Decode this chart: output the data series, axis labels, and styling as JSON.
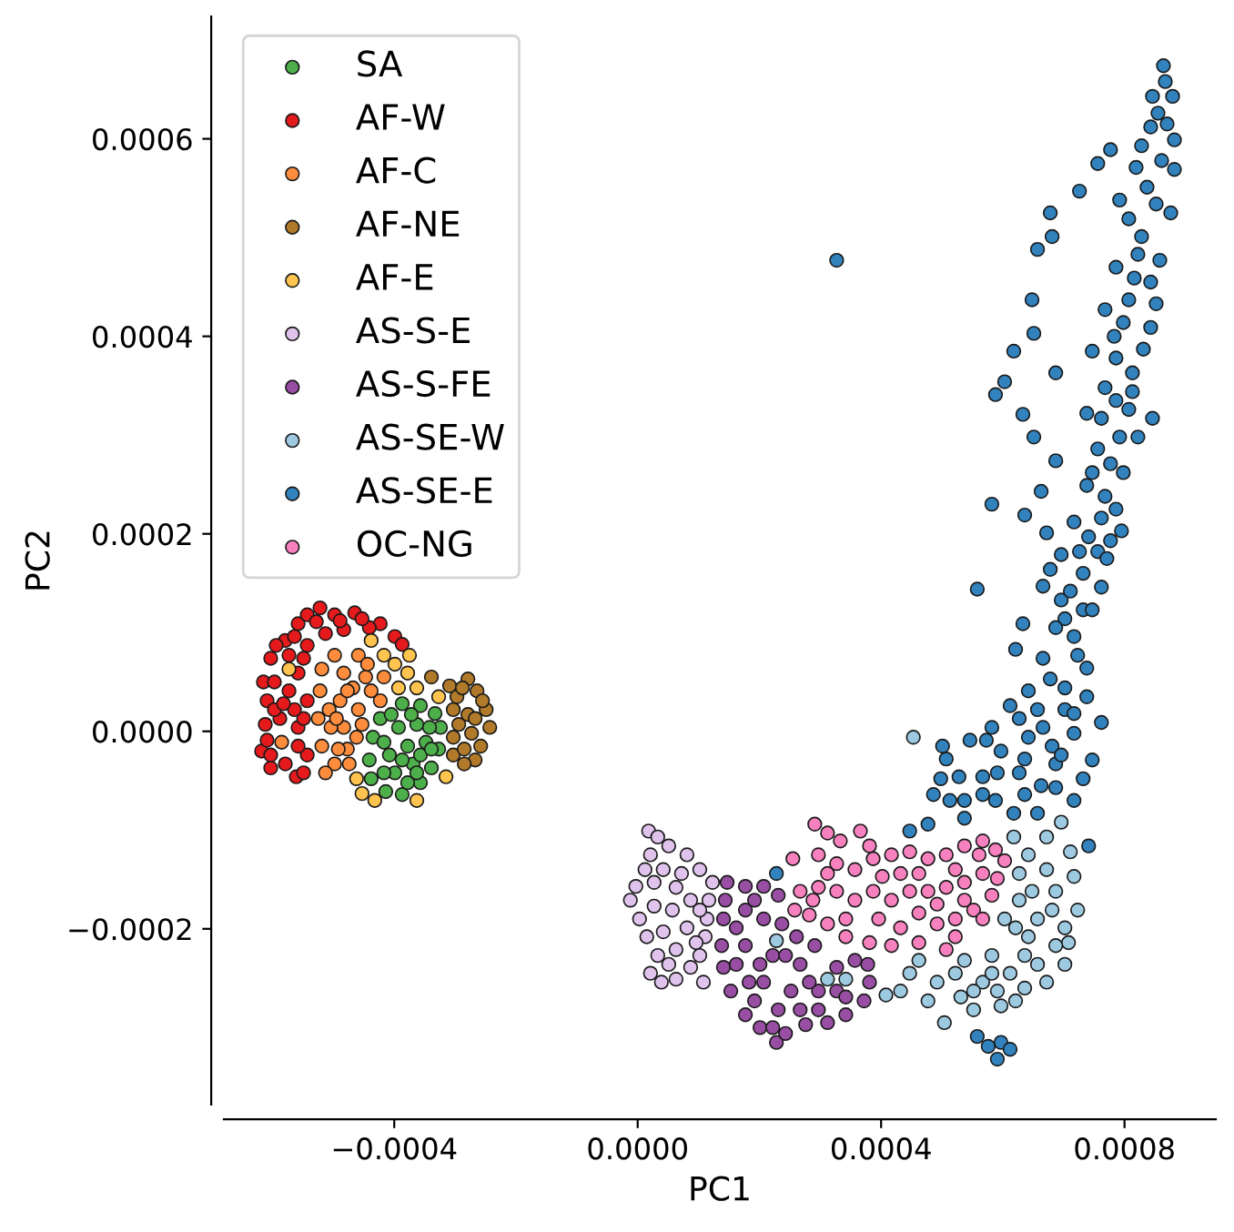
{
  "chart_data": {
    "type": "scatter",
    "xlabel": "PC1",
    "ylabel": "PC2",
    "legend": "top left",
    "marker": "circle",
    "xlim": [
      -0.00068,
      0.00095
    ],
    "ylim": [
      -0.000378,
      0.000724
    ],
    "xticks": [
      {
        "value": -0.0004,
        "label": "−0.0004"
      },
      {
        "value": 0.0,
        "label": "0.0000"
      },
      {
        "value": 0.0004,
        "label": "0.0004"
      },
      {
        "value": 0.0008,
        "label": "0.0008"
      }
    ],
    "yticks": [
      {
        "value": -0.0002,
        "label": "−0.0002"
      },
      {
        "value": 0.0,
        "label": "0.0000"
      },
      {
        "value": 0.0002,
        "label": "0.0002"
      },
      {
        "value": 0.0004,
        "label": "0.0004"
      },
      {
        "value": 0.0006,
        "label": "0.0006"
      }
    ],
    "series": [
      {
        "name": "SA",
        "color": "#4daf4a",
        "x": [
          -0.000387,
          -0.000357,
          -0.000333,
          -0.000324,
          -0.000327,
          -0.000339,
          -0.000357,
          -0.000387,
          -0.000414,
          -0.000438,
          -0.000441,
          -0.000435,
          -0.000423,
          -0.000393,
          -0.000363,
          -0.000378,
          -0.000348,
          -0.000408,
          -0.000369,
          -0.000399,
          -0.000378,
          -0.000357,
          -0.000417,
          -0.000405,
          -0.000372,
          -0.000342,
          -0.000387,
          -0.000417,
          -0.000339,
          -0.000363
        ],
        "values": [
          2.8e-05,
          2.6e-05,
          1.8e-05,
          4e-06,
          -1.8e-05,
          -3.7e-05,
          -5.2e-05,
          -6.4e-05,
          -6.1e-05,
          -4.8e-05,
          -2.9e-05,
          -6e-06,
          1.3e-05,
          4e-06,
          7e-06,
          -1.5e-05,
          -1.1e-05,
          -2.4e-05,
          -3.3e-05,
          -4.2e-05,
          -5.2e-05,
          -2.4e-05,
          -1.1e-05,
          1.7e-05,
          1.7e-05,
          4e-06,
          -2.9e-05,
          -4.2e-05,
          -1.8e-05,
          -4.2e-05
        ]
      },
      {
        "name": "AF-W",
        "color": "#e41a1c",
        "x": [
          -0.000522,
          -0.000465,
          -0.000423,
          -0.000399,
          -0.000387,
          -0.000561,
          -0.000603,
          -0.000618,
          -0.000612,
          -0.000609,
          -0.000615,
          -0.000603,
          -0.000579,
          -0.000558,
          -0.000543,
          -0.000498,
          -0.000441,
          -0.000573,
          -0.000543,
          -0.000513,
          -0.000483,
          -0.000558,
          -0.000573,
          -0.000543,
          -0.000588,
          -0.000558,
          -0.000543,
          -0.000549,
          -0.000549,
          -0.000597,
          -0.000528,
          -0.000609,
          -0.000594,
          -0.000564,
          -0.000489,
          -0.000453,
          -0.000597,
          -0.000564,
          -0.000603,
          -0.000579,
          -0.000558,
          -0.000549,
          -0.000582
        ],
        "values": [
          0.000125,
          0.00012,
          0.000109,
          9.6e-05,
          8.8e-05,
          -4.6e-05,
          -3.7e-05,
          -2e-05,
          7e-06,
          3.1e-05,
          5e-05,
          7.4e-05,
          9.2e-05,
          0.000109,
          0.000118,
          0.000118,
          0.000105,
          7.7e-05,
          8.7e-05,
          9.9e-05,
          0.000103,
          5.9e-05,
          4.1e-05,
          3.1e-05,
          1.3e-05,
          4e-06,
          -2.4e-05,
          1.3e-05,
          -4.2e-05,
          2.2e-05,
          0.000111,
          -9e-06,
          8.7e-05,
          9.6e-05,
          0.000112,
          0.000114,
          5e-05,
          2.2e-05,
          -2.4e-05,
          -3.3e-05,
          -1.5e-05,
          7.4e-05,
          2.8e-05
        ]
      },
      {
        "name": "AF-C",
        "color": "#fd8d3c",
        "x": [
          -0.000498,
          -0.000459,
          -0.000519,
          -0.000483,
          -0.000447,
          -0.000417,
          -0.000423,
          -0.000522,
          -0.000489,
          -0.000459,
          -0.000525,
          -0.000483,
          -0.000462,
          -0.000519,
          -0.000477,
          -0.000498,
          -0.000474,
          -0.000438,
          -0.000468,
          -0.000585,
          -0.000507,
          -0.000453,
          -0.000504,
          -0.000492,
          -0.000513,
          -0.000444,
          -0.000477,
          -0.000495
        ],
        "values": [
          7.7e-05,
          7.7e-05,
          6.3e-05,
          5.9e-05,
          5.5e-05,
          5.5e-05,
          3.1e-05,
          4.1e-05,
          3.1e-05,
          2.2e-05,
          1.3e-05,
          4e-06,
          -6e-06,
          -1.5e-05,
          -1.8e-05,
          -3.3e-05,
          -3.3e-05,
          4.1e-05,
          4.4e-05,
          -1.1e-05,
          2.2e-05,
          7e-06,
          4e-06,
          -1.8e-05,
          -4.2e-05,
          6.8e-05,
          4.1e-05,
          1.3e-05
        ]
      },
      {
        "name": "AF-NE",
        "color": "#b07a2a",
        "x": [
          -0.000339,
          -0.000309,
          -0.000279,
          -0.000264,
          -0.000249,
          -0.000243,
          -0.000258,
          -0.000267,
          -0.000285,
          -0.000303,
          -0.000303,
          -0.000303,
          -0.000297,
          -0.000279,
          -0.000273,
          -0.000267,
          -0.000255,
          -0.000285,
          -0.000288,
          -0.000294
        ],
        "values": [
          5.5e-05,
          4.6e-05,
          5.3e-05,
          4.1e-05,
          2.2e-05,
          4e-06,
          -1.5e-05,
          -2.9e-05,
          -3.3e-05,
          -2.4e-05,
          -6e-06,
          2.2e-05,
          3.5e-05,
          1.7e-05,
          -2e-06,
          1.3e-05,
          3.1e-05,
          -1.8e-05,
          4.4e-05,
          7e-06
        ]
      },
      {
        "name": "AF-E",
        "color": "#fec44f",
        "x": [
          -0.000573,
          -0.000438,
          -0.000417,
          -0.000399,
          -0.000378,
          -0.000363,
          -0.000393,
          -0.000327,
          -0.000462,
          -0.000453,
          -0.000432,
          -0.000363,
          -0.000315,
          -0.000375
        ],
        "values": [
          6.3e-05,
          9.2e-05,
          7.7e-05,
          6.8e-05,
          5.9e-05,
          4.4e-05,
          4.4e-05,
          3.5e-05,
          -4.8e-05,
          -6.3e-05,
          -7e-05,
          -7e-05,
          -4.6e-05,
          7.7e-05
        ]
      },
      {
        "name": "AS-S-E",
        "color": "#e0c3ec",
        "x": [
          1.8e-05,
          3.3e-05,
          5.1e-05,
          8.1e-05,
          0.000102,
          0.000123,
          0.000117,
          0.000114,
          0.000111,
          0.000102,
          8.7e-05,
          6.3e-05,
          3.9e-05,
          2.1e-05,
          3.3e-05,
          1.5e-05,
          3e-06,
          -1.2e-05,
          -3e-06,
          1.2e-05,
          2.1e-05,
          4.2e-05,
          6.3e-05,
          8.7e-05,
          5.7e-05,
          8.1e-05,
          4.2e-05,
          6.3e-05,
          0.000108,
          2.7e-05,
          2.7e-05,
          7.2e-05,
          0.000102,
          5.1e-05,
          9.6e-05
        ],
        "values": [
          -0.000101,
          -0.000107,
          -0.000116,
          -0.000125,
          -0.00014,
          -0.000153,
          -0.000171,
          -0.00019,
          -0.000208,
          -0.000227,
          -0.000239,
          -0.000251,
          -0.000254,
          -0.000245,
          -0.000227,
          -0.000208,
          -0.00019,
          -0.000171,
          -0.000157,
          -0.00014,
          -0.000125,
          -0.00014,
          -0.000158,
          -0.000171,
          -0.000181,
          -0.000199,
          -0.000203,
          -0.000221,
          -0.000254,
          -0.000177,
          -0.000153,
          -0.000144,
          -0.000181,
          -0.000236,
          -0.000214
        ]
      },
      {
        "name": "AS-S-FE",
        "color": "#984ea3",
        "x": [
          0.000147,
          0.000177,
          0.000207,
          0.000231,
          0.000144,
          0.000141,
          0.000138,
          0.000141,
          0.000153,
          0.000177,
          0.000201,
          0.000228,
          0.000243,
          0.000276,
          0.000312,
          0.000342,
          0.000372,
          0.000381,
          0.000378,
          0.000357,
          0.000327,
          0.000291,
          0.000261,
          0.000237,
          0.000177,
          0.000207,
          0.000162,
          0.000177,
          0.000222,
          0.000267,
          0.000297,
          0.000207,
          0.000252,
          0.000192,
          0.000267,
          0.000327,
          0.000231,
          0.000192,
          0.000243,
          0.000282,
          0.000342,
          0.000162,
          0.000201,
          0.000222,
          0.000297,
          0.000183
        ],
        "values": [
          -0.000153,
          -0.000157,
          -0.000157,
          -0.000166,
          -0.000171,
          -0.00019,
          -0.000217,
          -0.000239,
          -0.000263,
          -0.000287,
          -0.0003,
          -0.000315,
          -0.000306,
          -0.000297,
          -0.000295,
          -0.000287,
          -0.000273,
          -0.000254,
          -0.000236,
          -0.000232,
          -0.000239,
          -0.000217,
          -0.000208,
          -0.000195,
          -0.000181,
          -0.00019,
          -0.000199,
          -0.000217,
          -0.000227,
          -0.000236,
          -0.000263,
          -0.000254,
          -0.000263,
          -0.000273,
          -0.000282,
          -0.000263,
          -0.000282,
          -0.000171,
          -0.000227,
          -0.000254,
          -0.000269,
          -0.000236,
          -0.000236,
          -0.0003,
          -0.000282,
          -0.000254
        ]
      },
      {
        "name": "AS-SE-W",
        "color": "#9ecae1",
        "x": [
          0.000453,
          0.000228,
          0.000312,
          0.000342,
          0.000408,
          0.000504,
          0.000447,
          0.000462,
          0.000618,
          0.000642,
          0.000672,
          0.000696,
          0.000711,
          0.000717,
          0.000723,
          0.000708,
          0.000702,
          0.000672,
          0.000636,
          0.000597,
          0.000552,
          0.000531,
          0.000477,
          0.000522,
          0.000567,
          0.000612,
          0.000657,
          0.000687,
          0.000657,
          0.000687,
          0.000627,
          0.000621,
          0.000582,
          0.000642,
          0.000672,
          0.000627,
          0.000432,
          0.000702,
          0.000603,
          0.000492,
          0.000537,
          0.000648,
          0.000591,
          0.000552,
          0.000636,
          0.000681,
          0.000621,
          0.000582
        ],
        "values": [
          -6e-06,
          -0.000212,
          -0.000251,
          -0.000251,
          -0.000267,
          -0.000295,
          -0.000245,
          -0.000232,
          -0.000107,
          -0.000125,
          -0.000107,
          -9.2e-05,
          -0.000122,
          -0.000147,
          -0.000181,
          -0.000214,
          -0.000236,
          -0.000254,
          -0.00026,
          -0.000278,
          -0.000282,
          -0.000269,
          -0.000273,
          -0.000245,
          -0.000254,
          -0.000245,
          -0.000236,
          -0.000217,
          -0.00019,
          -0.000162,
          -0.000171,
          -0.000199,
          -0.000227,
          -0.000208,
          -0.00014,
          -0.000144,
          -0.000263,
          -0.000199,
          -0.00019,
          -0.000254,
          -0.000232,
          -0.000162,
          -0.000263,
          -0.000263,
          -0.000227,
          -0.000181,
          -0.000273,
          -0.000245
        ]
      },
      {
        "name": "AS-SE-E",
        "color": "#3182bd",
        "x": [
          0.000864,
          0.000879,
          0.000846,
          0.000882,
          0.000828,
          0.000777,
          0.000756,
          0.000882,
          0.000837,
          0.000726,
          0.000876,
          0.000807,
          0.000678,
          0.000681,
          0.000828,
          0.000657,
          0.000858,
          0.000786,
          0.000816,
          0.000648,
          0.000852,
          0.000768,
          0.000798,
          0.000843,
          0.000651,
          0.000618,
          0.000747,
          0.000786,
          0.000687,
          0.000603,
          0.000768,
          0.000588,
          0.000786,
          0.000738,
          0.000633,
          0.000846,
          0.000822,
          0.000651,
          0.000756,
          0.000687,
          0.000798,
          0.000738,
          0.000663,
          0.000768,
          0.000582,
          0.000786,
          0.000636,
          0.000717,
          0.000672,
          0.000777,
          0.000726,
          0.000756,
          0.000696,
          0.000771,
          0.000678,
          0.000558,
          0.000666,
          0.000762,
          0.000633,
          0.000621,
          0.000666,
          0.000738,
          0.000678,
          0.000612,
          0.000738,
          0.000762,
          0.000627,
          0.000666,
          0.000717,
          0.000573,
          0.000546,
          0.000501,
          0.000507,
          0.000747,
          0.000687,
          0.000636,
          0.000597,
          0.000567,
          0.000528,
          0.000498,
          0.000486,
          0.000537,
          0.000588,
          0.000636,
          0.000687,
          0.000717,
          0.000741,
          0.000477,
          0.000447,
          0.000537,
          0.000618,
          0.000657,
          0.000558,
          0.000597,
          0.000591,
          0.000612,
          0.000576,
          0.000228,
          0.000327,
          0.000717,
          0.000702,
          0.000642,
          0.000702,
          0.000732,
          0.000696,
          0.000867,
          0.000855,
          0.00087,
          0.000843,
          0.000861,
          0.000819,
          0.000852,
          0.000792,
          0.000822,
          0.000843,
          0.000807,
          0.000831,
          0.000813,
          0.000783,
          0.000762,
          0.000807,
          0.000792,
          0.000777,
          0.000747,
          0.000813,
          0.000762,
          0.000741,
          0.000795,
          0.000732,
          0.000711,
          0.000747,
          0.000723,
          0.000687,
          0.000702,
          0.000657,
          0.000717,
          0.000681,
          0.000627,
          0.000732,
          0.000663,
          0.000591,
          0.000513,
          0.000567,
          0.000696,
          0.000582,
          0.000642
        ],
        "values": [
          0.000674,
          0.000643,
          0.000643,
          0.000599,
          0.000593,
          0.000589,
          0.000575,
          0.000569,
          0.000551,
          0.000547,
          0.000525,
          0.000519,
          0.000525,
          0.000501,
          0.000501,
          0.000488,
          0.000477,
          0.00047,
          0.000459,
          0.000437,
          0.000433,
          0.000427,
          0.000414,
          0.000409,
          0.000403,
          0.000385,
          0.000385,
          0.000378,
          0.000363,
          0.000354,
          0.000348,
          0.000341,
          0.000335,
          0.000322,
          0.000321,
          0.000317,
          0.000298,
          0.000298,
          0.000286,
          0.000274,
          0.000262,
          0.000249,
          0.000243,
          0.000238,
          0.00023,
          0.000225,
          0.000219,
          0.000212,
          0.000201,
          0.000193,
          0.000182,
          0.000182,
          0.000179,
          0.000175,
          0.000164,
          0.000144,
          0.000147,
          0.000146,
          0.000109,
          8.3e-05,
          7.4e-05,
          6.4e-05,
          5.3e-05,
          2.6e-05,
          3.5e-05,
          9e-06,
          1.3e-05,
          4e-06,
          -2e-06,
          -9e-06,
          -9e-06,
          -1.5e-05,
          -2.8e-05,
          -2.9e-05,
          -3.3e-05,
          -2.8e-05,
          -2e-05,
          -4.6e-05,
          -4.6e-05,
          -4.8e-05,
          -6.4e-05,
          -7e-05,
          -7e-05,
          -6.4e-05,
          -5.7e-05,
          -7e-05,
          -0.000116,
          -9.4e-05,
          -0.000101,
          -8.8e-05,
          -8.3e-05,
          -8.3e-05,
          -0.000309,
          -0.000315,
          -0.000332,
          -0.000322,
          -0.000319,
          -0.000144,
          0.000477,
          9.6e-05,
          2.2e-05,
          4.1e-05,
          0.000114,
          0.000123,
          0.000133,
          0.000658,
          0.000626,
          0.000615,
          0.000612,
          0.000578,
          0.000571,
          0.000534,
          0.000538,
          0.000483,
          0.000455,
          0.000437,
          0.000387,
          0.000363,
          0.0004,
          0.000317,
          0.000326,
          0.000298,
          0.000271,
          0.000262,
          0.000344,
          0.000216,
          0.000197,
          0.000203,
          0.00016,
          0.000142,
          0.000123,
          7.7e-05,
          0.000105,
          4.4e-05,
          2.2e-05,
          1.8e-05,
          -1.5e-05,
          -4.2e-05,
          -4.8e-05,
          -5.5e-05,
          -4.2e-05,
          -7e-05,
          -6.4e-05,
          -2.4e-05,
          4e-06,
          -6e-06
        ]
      },
      {
        "name": "OC-NG",
        "color": "#f781bf",
        "x": [
          0.000291,
          0.000312,
          0.000366,
          0.000381,
          0.000255,
          0.000297,
          0.000327,
          0.000357,
          0.000387,
          0.000417,
          0.000447,
          0.000477,
          0.000507,
          0.000537,
          0.000567,
          0.000588,
          0.000603,
          0.000591,
          0.000582,
          0.000552,
          0.000522,
          0.000492,
          0.000462,
          0.000432,
          0.000417,
          0.000381,
          0.000342,
          0.000312,
          0.000282,
          0.000258,
          0.000267,
          0.000297,
          0.000327,
          0.000357,
          0.000387,
          0.000417,
          0.000447,
          0.000477,
          0.000507,
          0.000537,
          0.000567,
          0.000342,
          0.000507,
          0.000462,
          0.000312,
          0.000402,
          0.000492,
          0.000537,
          0.000333,
          0.000432,
          0.000462,
          0.000522,
          0.000561,
          0.000396,
          0.000522,
          0.000567,
          0.000288
        ],
        "values": [
          -9.4e-05,
          -0.000103,
          -0.000101,
          -0.000116,
          -0.000129,
          -0.000125,
          -0.000134,
          -0.00014,
          -0.000129,
          -0.000125,
          -0.000122,
          -0.000129,
          -0.000125,
          -0.000116,
          -0.000111,
          -0.00012,
          -0.000131,
          -0.000149,
          -0.000166,
          -0.000181,
          -0.00019,
          -0.000195,
          -0.000184,
          -0.000199,
          -0.000217,
          -0.000214,
          -0.000208,
          -0.000195,
          -0.000186,
          -0.000181,
          -0.000162,
          -0.000158,
          -0.000162,
          -0.000171,
          -0.000162,
          -0.000171,
          -0.000162,
          -0.000162,
          -0.000158,
          -0.000153,
          -0.000144,
          -0.00019,
          -0.000221,
          -0.000214,
          -0.000144,
          -0.000147,
          -0.000175,
          -0.000171,
          -0.000111,
          -0.000144,
          -0.000144,
          -0.00014,
          -0.000125,
          -0.00019,
          -0.000208,
          -0.00019,
          -0.000171
        ]
      }
    ]
  }
}
